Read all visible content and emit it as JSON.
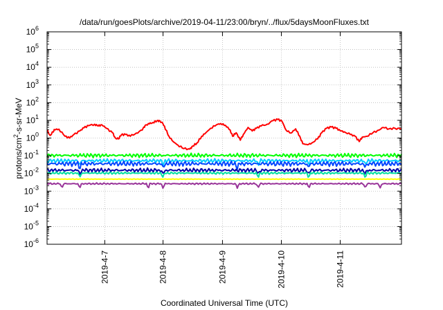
{
  "chart_data": {
    "type": "line",
    "title": "/data/run/goesPlots/archive/2019-04-11/23:00/bryn/../flux/5daysMoonFluxes.txt",
    "xlabel": "Coordinated Universal Time (UTC)",
    "ylabel": {
      "prefix": "protons/cm",
      "superscript": "2",
      "suffix": "-s-sr-MeV"
    },
    "y_scale": "log",
    "ylim_exponents": [
      -6,
      6
    ],
    "y_tick_base": "10",
    "y_tick_exponents": [
      "-6",
      "-5",
      "-4",
      "-3",
      "-2",
      "-1",
      "0",
      "1",
      "2",
      "3",
      "4",
      "5",
      "6"
    ],
    "x_range_days": [
      0.0,
      5.96
    ],
    "x_ticks": [
      {
        "label": "2019-4-7",
        "day": 0.97
      },
      {
        "label": "2019-4-8",
        "day": 1.95
      },
      {
        "label": "2019-4-9",
        "day": 2.95
      },
      {
        "label": "2019-4-10",
        "day": 3.94
      },
      {
        "label": "2019-4-11",
        "day": 4.93
      }
    ],
    "grid": true,
    "series": [
      {
        "color": "#ff0000",
        "points": [
          [
            0.0,
            0.45
          ],
          [
            0.05,
            0.15
          ],
          [
            0.1,
            0.35
          ],
          [
            0.12,
            0.48
          ],
          [
            0.2,
            0.5
          ],
          [
            0.3,
            0.1
          ],
          [
            0.38,
            0.0
          ],
          [
            0.45,
            0.2
          ],
          [
            0.55,
            0.4
          ],
          [
            0.62,
            0.58
          ],
          [
            0.7,
            0.7
          ],
          [
            0.8,
            0.78
          ],
          [
            0.86,
            0.68
          ],
          [
            0.92,
            0.75
          ],
          [
            1.0,
            0.55
          ],
          [
            1.1,
            0.3
          ],
          [
            1.15,
            0.0
          ],
          [
            1.2,
            -0.05
          ],
          [
            1.25,
            0.18
          ],
          [
            1.32,
            0.2
          ],
          [
            1.4,
            0.1
          ],
          [
            1.5,
            0.28
          ],
          [
            1.6,
            0.45
          ],
          [
            1.65,
            0.72
          ],
          [
            1.72,
            0.8
          ],
          [
            1.78,
            0.88
          ],
          [
            1.85,
            0.98
          ],
          [
            1.9,
            0.97
          ],
          [
            1.95,
            0.8
          ],
          [
            2.0,
            0.45
          ],
          [
            2.05,
            0.1
          ],
          [
            2.12,
            -0.2
          ],
          [
            2.2,
            -0.4
          ],
          [
            2.3,
            -0.6
          ],
          [
            2.4,
            -0.62
          ],
          [
            2.45,
            -0.45
          ],
          [
            2.52,
            -0.28
          ],
          [
            2.6,
            0.1
          ],
          [
            2.67,
            0.3
          ],
          [
            2.75,
            0.55
          ],
          [
            2.85,
            0.75
          ],
          [
            2.92,
            0.82
          ],
          [
            3.0,
            0.72
          ],
          [
            3.08,
            0.45
          ],
          [
            3.12,
            0.1
          ],
          [
            3.18,
            0.3
          ],
          [
            3.25,
            -0.12
          ],
          [
            3.3,
            0.2
          ],
          [
            3.38,
            0.6
          ],
          [
            3.45,
            0.4
          ],
          [
            3.52,
            0.55
          ],
          [
            3.6,
            0.68
          ],
          [
            3.7,
            0.78
          ],
          [
            3.8,
            0.98
          ],
          [
            3.88,
            1.05
          ],
          [
            3.95,
            0.95
          ],
          [
            4.02,
            0.45
          ],
          [
            4.1,
            0.28
          ],
          [
            4.18,
            0.52
          ],
          [
            4.25,
            0.1
          ],
          [
            4.3,
            -0.32
          ],
          [
            4.38,
            -0.38
          ],
          [
            4.45,
            -0.28
          ],
          [
            4.55,
            -0.05
          ],
          [
            4.62,
            0.3
          ],
          [
            4.7,
            0.55
          ],
          [
            4.78,
            0.62
          ],
          [
            4.86,
            0.55
          ],
          [
            4.93,
            0.42
          ],
          [
            5.0,
            0.35
          ],
          [
            5.1,
            0.2
          ],
          [
            5.18,
            0.1
          ],
          [
            5.25,
            -0.2
          ],
          [
            5.3,
            0.05
          ],
          [
            5.38,
            0.1
          ],
          [
            5.48,
            0.3
          ],
          [
            5.58,
            0.45
          ],
          [
            5.65,
            0.6
          ],
          [
            5.75,
            0.52
          ],
          [
            5.85,
            0.55
          ],
          [
            5.96,
            0.5
          ]
        ]
      },
      {
        "color": "#00ff00",
        "level": -0.98,
        "amplitude": 0.13,
        "dips": []
      },
      {
        "color": "#00ccff",
        "level": -1.28,
        "amplitude": 0.12,
        "dips": [
          0.55,
          1.95,
          3.55,
          4.4,
          5.35
        ]
      },
      {
        "color": "#0044ff",
        "level": -1.45,
        "amplitude": 0.16,
        "dips": [
          0.55,
          1.95,
          3.2,
          4.4,
          5.35
        ]
      },
      {
        "color": "#0000aa",
        "level": -1.82,
        "amplitude": 0.13,
        "dips": [
          0.55,
          1.95,
          3.55,
          4.4,
          5.35
        ]
      },
      {
        "color": "#00e0a0",
        "level": -1.98,
        "amplitude": 0.07,
        "dips": [
          0.55,
          1.95,
          3.55,
          4.4,
          5.35
        ]
      },
      {
        "color": "#ffff00",
        "level": -2.32,
        "amplitude": 0.02,
        "dips": []
      },
      {
        "color": "#993399",
        "level": -2.58,
        "amplitude": 0.05,
        "dips": [
          0.25,
          0.55,
          1.7,
          1.95,
          3.2,
          3.55,
          4.4,
          5.35,
          5.6
        ]
      }
    ]
  }
}
